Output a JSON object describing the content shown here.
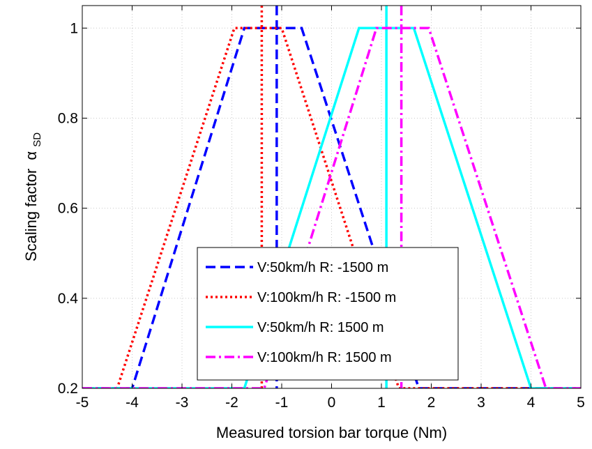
{
  "chart_data": {
    "type": "line",
    "xlabel": "Measured torsion bar torque (Nm)",
    "ylabel": "Scaling factor",
    "ylabel_symbol": "α",
    "ylabel_subscript": "SD",
    "xlim": [
      -5,
      5
    ],
    "ylim": [
      0.2,
      1.05
    ],
    "xticks": [
      -5,
      -4,
      -3,
      -2,
      -1,
      0,
      1,
      2,
      3,
      4,
      5
    ],
    "yticks": [
      0.2,
      0.4,
      0.6,
      0.8,
      1
    ],
    "ytick_labels": [
      "0.2",
      "0.4",
      "0.6",
      "0.8",
      "1"
    ],
    "grid": true,
    "legend_position": "bottom-center",
    "series": [
      {
        "name": "V:50km/h R: -1500 m",
        "color": "#0000ff",
        "style": "dashed",
        "x": [
          -5,
          -4,
          -1.75,
          -0.6,
          1.75,
          5
        ],
        "y": [
          0.2,
          0.2,
          1,
          1,
          0.2,
          0.2
        ],
        "vline": -1.1
      },
      {
        "name": "V:100km/h R: -1500 m",
        "color": "#ff0000",
        "style": "dotted",
        "x": [
          -5,
          -4.3,
          -1.95,
          -1.0,
          1.35,
          5
        ],
        "y": [
          0.2,
          0.2,
          1,
          1,
          0.2,
          0.2
        ],
        "vline": -1.4
      },
      {
        "name": "V:50km/h R: 1500 m",
        "color": "#00ffff",
        "style": "solid",
        "x": [
          -5,
          -1.75,
          0.55,
          1.65,
          4.0,
          5
        ],
        "y": [
          0.2,
          0.2,
          1,
          1,
          0.2,
          0.2
        ],
        "vline": 1.1
      },
      {
        "name": "V:100km/h R: 1500 m",
        "color": "#ff00ff",
        "style": "dashdot",
        "x": [
          -5,
          -1.35,
          0.9,
          1.95,
          4.3,
          5
        ],
        "y": [
          0.2,
          0.2,
          1,
          1,
          0.2,
          0.2
        ],
        "vline": 1.4
      }
    ]
  }
}
